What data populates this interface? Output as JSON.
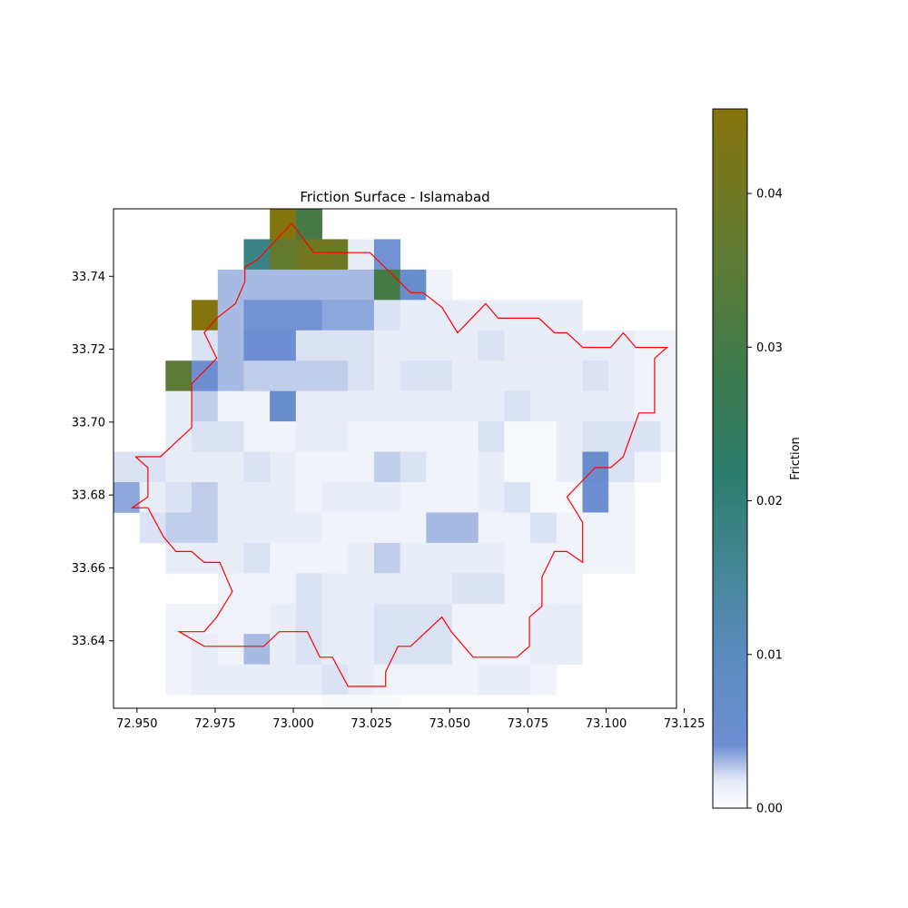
{
  "chart_data": {
    "type": "heatmap",
    "title": "Friction Surface - Islamabad",
    "xlabel": "",
    "ylabel": "",
    "xlim": [
      72.9425,
      73.1225
    ],
    "ylim": [
      33.6215,
      33.7585
    ],
    "x_ticks": [
      "72.950",
      "72.975",
      "73.000",
      "73.025",
      "73.050",
      "73.075",
      "73.100",
      "73.125"
    ],
    "y_ticks": [
      "33.64",
      "33.66",
      "33.68",
      "33.70",
      "33.72",
      "33.74"
    ],
    "colorbar": {
      "label": "Friction",
      "range": [
        0,
        0.0455
      ],
      "ticks": [
        "0.00",
        "0.01",
        "0.02",
        "0.03",
        "0.04"
      ],
      "colors": [
        [
          0,
          "#ffffff"
        ],
        [
          0.04,
          "#e4e9f6"
        ],
        [
          0.09,
          "#6e8ed2"
        ],
        [
          0.22,
          "#5b8bbe"
        ],
        [
          0.35,
          "#428693"
        ],
        [
          0.48,
          "#2b7c6b"
        ],
        [
          0.62,
          "#3d7a4d"
        ],
        [
          0.78,
          "#5c7a34"
        ],
        [
          1,
          "#86740c"
        ]
      ]
    },
    "grid": {
      "x0": 72.9425,
      "y_top": 33.7585,
      "cell": 0.00833,
      "rows": [
        [
          null,
          null,
          null,
          null,
          null,
          null,
          0.045,
          0.03,
          null,
          null,
          null,
          null,
          null,
          null,
          null,
          null,
          null,
          null,
          null,
          null,
          null,
          null,
          null
        ],
        [
          null,
          null,
          null,
          null,
          null,
          0.018,
          0.037,
          0.04,
          0.04,
          0.0015,
          0.004,
          null,
          null,
          null,
          null,
          null,
          null,
          null,
          null,
          null,
          null,
          null,
          null
        ],
        [
          null,
          null,
          null,
          null,
          0.003,
          0.003,
          0.003,
          0.003,
          0.003,
          0.003,
          0.03,
          0.006,
          0.001,
          null,
          null,
          null,
          null,
          null,
          null,
          null,
          null,
          null,
          null
        ],
        [
          null,
          null,
          null,
          0.045,
          0.003,
          0.004,
          0.004,
          0.004,
          0.0035,
          0.0035,
          0.002,
          0.0015,
          0.0015,
          0.0015,
          0.0015,
          0.0015,
          0.0015,
          0.0015,
          null,
          null,
          null,
          null,
          null
        ],
        [
          null,
          null,
          null,
          0.002,
          0.003,
          0.0045,
          0.0045,
          0.002,
          0.002,
          0.002,
          0.0015,
          0.0015,
          0.0015,
          0.0015,
          0.002,
          0.0015,
          0.0015,
          0.0015,
          0.0015,
          0.0015,
          0.001,
          0.001,
          0.001
        ],
        [
          null,
          null,
          0.035,
          0.0045,
          0.003,
          0.0025,
          0.0025,
          0.0025,
          0.0025,
          0.002,
          0.0015,
          0.002,
          0.002,
          0.0015,
          0.0015,
          0.0015,
          0.0015,
          0.0015,
          0.002,
          0.0015,
          0.001,
          0.001,
          null
        ],
        [
          null,
          null,
          0.0015,
          0.0025,
          0.001,
          0.001,
          0.0055,
          0.0015,
          0.0015,
          0.0015,
          0.0015,
          0.0015,
          0.0015,
          0.0015,
          0.0015,
          0.002,
          0.0015,
          0.0015,
          0.0015,
          0.0015,
          0.001,
          0.001,
          null
        ],
        [
          null,
          null,
          0.0015,
          0.002,
          0.002,
          0.001,
          0.001,
          0.0015,
          0.0015,
          0.001,
          0.001,
          0.001,
          0.001,
          0.001,
          0.002,
          0.0005,
          0.0005,
          0.0015,
          0.002,
          0.002,
          0.002,
          0.001,
          null
        ],
        [
          0.002,
          0.002,
          0.0015,
          0.0015,
          0.0015,
          0.002,
          0.0015,
          0.001,
          0.001,
          0.001,
          0.0025,
          0.002,
          0.001,
          0.001,
          0.0015,
          0.0005,
          0.0005,
          0.0015,
          0.0055,
          0.002,
          0.001,
          null,
          null
        ],
        [
          0.0035,
          0.0015,
          0.002,
          0.0025,
          0.0015,
          0.0015,
          0.0015,
          0.001,
          0.0015,
          0.0015,
          0.0015,
          0.001,
          0.001,
          0.001,
          0.0015,
          0.002,
          0.0005,
          0.0005,
          0.0045,
          0.001,
          null,
          null,
          null
        ],
        [
          null,
          0.002,
          0.0025,
          0.0025,
          0.0015,
          0.0015,
          0.0015,
          0.0015,
          0.001,
          0.001,
          0.001,
          0.001,
          0.003,
          0.003,
          0.001,
          0.001,
          0.002,
          0.001,
          0.001,
          0.001,
          null,
          null,
          null
        ],
        [
          null,
          null,
          0.0015,
          0.0015,
          0.0015,
          0.002,
          0.001,
          0.001,
          0.001,
          0.0015,
          0.0025,
          0.0015,
          0.0015,
          0.0015,
          0.0015,
          0.001,
          0.001,
          0.001,
          0.001,
          0.001,
          null,
          null,
          null
        ],
        [
          null,
          null,
          null,
          null,
          0.001,
          0.001,
          0.001,
          0.002,
          0.0015,
          0.0015,
          0.0015,
          0.0015,
          0.0015,
          0.002,
          0.002,
          0.001,
          0.001,
          0.001,
          null,
          null,
          null,
          null,
          null
        ],
        [
          null,
          null,
          0.001,
          0.001,
          0.001,
          0.001,
          0.0015,
          0.002,
          0.0015,
          0.0015,
          0.002,
          0.002,
          0.002,
          0.001,
          0.001,
          0.001,
          0.0015,
          0.0015,
          null,
          null,
          null,
          null,
          null
        ],
        [
          null,
          null,
          0.001,
          0.0015,
          0.001,
          0.003,
          0.0015,
          0.002,
          0.0015,
          0.0015,
          0.002,
          0.002,
          0.002,
          0.001,
          0.001,
          0.001,
          0.0015,
          0.0015,
          null,
          null,
          null,
          null,
          null
        ],
        [
          null,
          null,
          0.001,
          0.0015,
          0.0015,
          0.0015,
          0.0015,
          0.0015,
          0.002,
          0.0015,
          0.001,
          0.001,
          0.001,
          0.001,
          0.0015,
          0.0015,
          0.001,
          null,
          null,
          null,
          null,
          null,
          null
        ],
        [
          null,
          null,
          null,
          null,
          null,
          null,
          null,
          null,
          0.0005,
          0.0005,
          0.0005,
          null,
          null,
          null,
          null,
          null,
          null,
          null,
          null,
          null,
          null,
          null,
          null
        ]
      ]
    },
    "boundary": {
      "color": "#ff0000",
      "points": [
        [
          72.9495,
          33.6905
        ],
        [
          72.9575,
          33.6905
        ],
        [
          72.9675,
          33.6985
        ],
        [
          72.9675,
          33.7105
        ],
        [
          72.9755,
          33.7175
        ],
        [
          72.9715,
          33.7245
        ],
        [
          72.9755,
          33.7285
        ],
        [
          72.9815,
          33.7325
        ],
        [
          72.9845,
          33.7385
        ],
        [
          72.9845,
          33.7425
        ],
        [
          72.9885,
          33.7445
        ],
        [
          72.9995,
          33.7545
        ],
        [
          73.0065,
          33.7465
        ],
        [
          73.0245,
          33.7465
        ],
        [
          73.0375,
          33.7355
        ],
        [
          73.0415,
          33.7355
        ],
        [
          73.0475,
          33.7315
        ],
        [
          73.0525,
          33.7245
        ],
        [
          73.0615,
          33.7325
        ],
        [
          73.0655,
          33.7285
        ],
        [
          73.0785,
          33.7285
        ],
        [
          73.0835,
          33.7245
        ],
        [
          73.0875,
          33.7245
        ],
        [
          73.0925,
          33.7205
        ],
        [
          73.1015,
          33.7205
        ],
        [
          73.1055,
          33.7245
        ],
        [
          73.1095,
          33.7205
        ],
        [
          73.1195,
          33.7205
        ],
        [
          73.1155,
          33.7175
        ],
        [
          73.1155,
          33.7025
        ],
        [
          73.1105,
          33.7025
        ],
        [
          73.1055,
          33.6905
        ],
        [
          73.1015,
          33.6875
        ],
        [
          73.0965,
          33.6875
        ],
        [
          73.0875,
          33.6795
        ],
        [
          73.0925,
          33.6725
        ],
        [
          73.0925,
          33.6615
        ],
        [
          73.0875,
          33.6645
        ],
        [
          73.0835,
          33.6645
        ],
        [
          73.0795,
          33.6575
        ],
        [
          73.0795,
          33.6495
        ],
        [
          73.0755,
          33.6465
        ],
        [
          73.0755,
          33.6385
        ],
        [
          73.0715,
          33.6355
        ],
        [
          73.0575,
          33.6355
        ],
        [
          73.0505,
          33.6425
        ],
        [
          73.0475,
          33.6465
        ],
        [
          73.0375,
          33.6385
        ],
        [
          73.0335,
          33.6385
        ],
        [
          73.0295,
          33.6315
        ],
        [
          73.0295,
          33.6275
        ],
        [
          73.0175,
          33.6275
        ],
        [
          73.0125,
          33.6355
        ],
        [
          73.0085,
          33.6355
        ],
        [
          73.0045,
          33.6425
        ],
        [
          72.9955,
          33.6425
        ],
        [
          72.9905,
          33.6385
        ],
        [
          72.9715,
          33.6385
        ],
        [
          72.9635,
          33.6425
        ],
        [
          72.9715,
          33.6425
        ],
        [
          72.9755,
          33.6465
        ],
        [
          72.9805,
          33.6535
        ],
        [
          72.9765,
          33.6615
        ],
        [
          72.9715,
          33.6615
        ],
        [
          72.9675,
          33.6645
        ],
        [
          72.9625,
          33.6645
        ],
        [
          72.9585,
          33.6685
        ],
        [
          72.9535,
          33.6765
        ],
        [
          72.9485,
          33.6765
        ],
        [
          72.9535,
          33.6795
        ],
        [
          72.9535,
          33.6875
        ],
        [
          72.9495,
          33.6905
        ]
      ]
    }
  }
}
